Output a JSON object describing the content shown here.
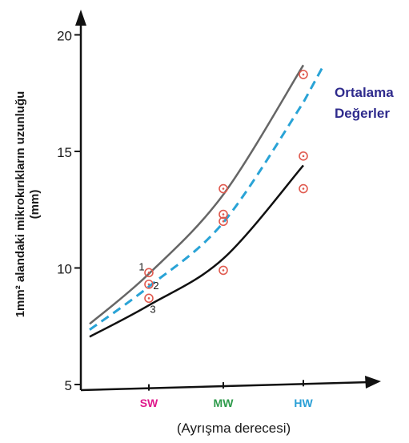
{
  "chart_data": {
    "type": "scatter",
    "title": "",
    "xlabel": "(Ayrışma derecesi)",
    "ylabel_line1": "1mm² alandaki mikrokırıkların uzunluğu",
    "ylabel_line2": "(mm)",
    "ylim": [
      5,
      20
    ],
    "yticks": [
      "5",
      "10",
      "15",
      "20"
    ],
    "categories": [
      {
        "label": "SW",
        "color": "#e0198c"
      },
      {
        "label": "MW",
        "color": "#2e9b4b"
      },
      {
        "label": "HW",
        "color": "#2a9fd6"
      }
    ],
    "points": [
      {
        "category": "SW",
        "y": 9.8
      },
      {
        "category": "SW",
        "y": 9.3
      },
      {
        "category": "SW",
        "y": 8.7
      },
      {
        "category": "MW",
        "y": 13.4
      },
      {
        "category": "MW",
        "y": 12.3
      },
      {
        "category": "MW",
        "y": 12.0
      },
      {
        "category": "MW",
        "y": 9.9
      },
      {
        "category": "HW",
        "y": 18.3
      },
      {
        "category": "HW",
        "y": 14.8
      },
      {
        "category": "HW",
        "y": 13.4
      }
    ],
    "point_labels": [
      {
        "text": "1",
        "category": "SW",
        "y": 9.8
      },
      {
        "text": "2",
        "category": "SW",
        "y": 9.3
      },
      {
        "text": "3",
        "category": "SW",
        "y": 8.7
      }
    ],
    "curves": [
      {
        "role": "upper",
        "style": "solid",
        "color": "#666666",
        "y_at": {
          "start": 7.6,
          "SW": 9.75,
          "MW": 13.15,
          "HW": 18.7
        }
      },
      {
        "role": "mean",
        "style": "dashed",
        "color": "#29a3d6",
        "y_at": {
          "start": 7.35,
          "SW": 9.2,
          "MW": 11.95,
          "HW": 17.1
        }
      },
      {
        "role": "lower",
        "style": "solid",
        "color": "#111111",
        "y_at": {
          "start": 7.05,
          "SW": 8.4,
          "MW": 10.4,
          "HW": 14.4
        }
      }
    ],
    "legend": {
      "line1": "Ortalama",
      "line2": "Değerler"
    },
    "marker_color": "#e05a4f"
  }
}
